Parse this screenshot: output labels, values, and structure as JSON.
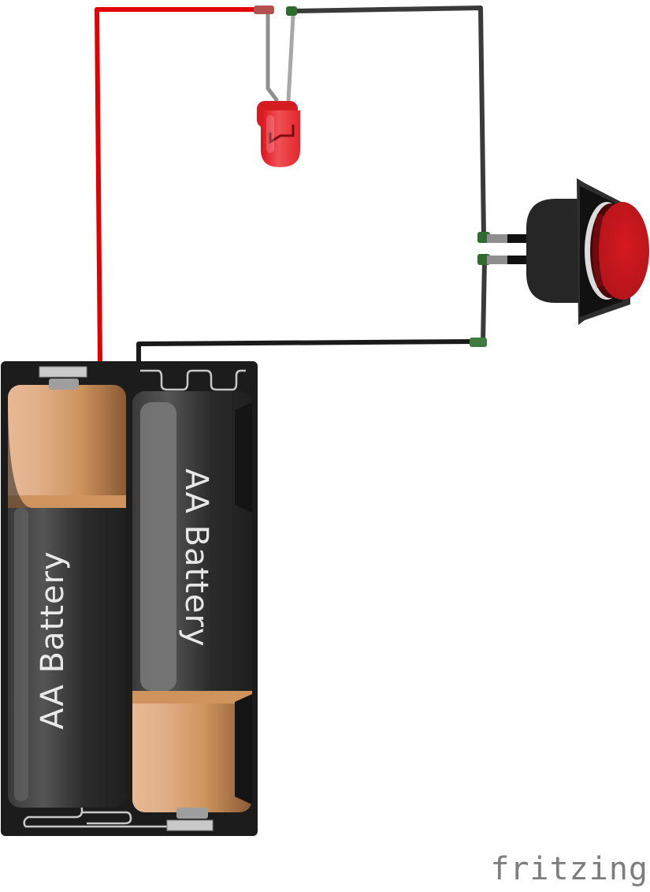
{
  "brand": {
    "logo_text": "fritzing"
  },
  "components": {
    "battery_cell_1": {
      "label": "AA Battery"
    },
    "battery_cell_2": {
      "label": "AA Battery"
    },
    "led": {
      "color": "#e8262b"
    },
    "pushbutton": {
      "cap_color": "#c4161c"
    }
  },
  "wires": {
    "positive_color": "#e20000",
    "negative_color": "#1a1a1a"
  }
}
